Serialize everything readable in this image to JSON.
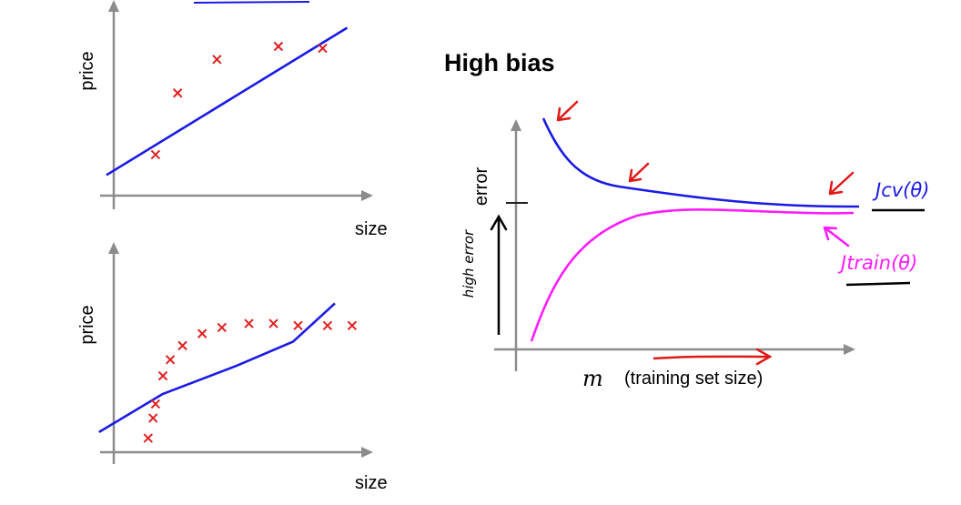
{
  "top_plot": {
    "y_label": "price",
    "x_label": "size",
    "points": [
      [
        0.17,
        0.22
      ],
      [
        0.26,
        0.55
      ],
      [
        0.42,
        0.73
      ],
      [
        0.67,
        0.8
      ],
      [
        0.85,
        0.79
      ]
    ],
    "fit": [
      [
        -0.03,
        0.11
      ],
      [
        0.95,
        0.9
      ]
    ],
    "colors": {
      "points": "#e02020",
      "fit": "#1a1ae6"
    }
  },
  "bottom_plot": {
    "y_label": "price",
    "x_label": "size",
    "points": [
      [
        0.14,
        0.07
      ],
      [
        0.16,
        0.17
      ],
      [
        0.17,
        0.24
      ],
      [
        0.2,
        0.38
      ],
      [
        0.23,
        0.46
      ],
      [
        0.28,
        0.53
      ],
      [
        0.36,
        0.59
      ],
      [
        0.44,
        0.62
      ],
      [
        0.55,
        0.64
      ],
      [
        0.65,
        0.64
      ],
      [
        0.75,
        0.63
      ],
      [
        0.87,
        0.63
      ],
      [
        0.97,
        0.63
      ]
    ],
    "fit": [
      [
        -0.06,
        0.1
      ],
      [
        0.2,
        0.29
      ],
      [
        0.5,
        0.43
      ],
      [
        0.73,
        0.55
      ],
      [
        0.9,
        0.74
      ]
    ],
    "colors": {
      "points": "#e02020",
      "fit": "#1a1ae6"
    }
  },
  "learning_curve": {
    "title": "High bias",
    "y_label": "error",
    "x_label_symbol": "m",
    "x_label": "(training set size)",
    "annotation_left": "high error",
    "j_cv": "Jcv(θ)",
    "j_train": "Jtrain(θ)",
    "colors": {
      "j_cv": "#1a1ae6",
      "j_train": "#ff1aff",
      "arrows": "#e01818"
    }
  }
}
